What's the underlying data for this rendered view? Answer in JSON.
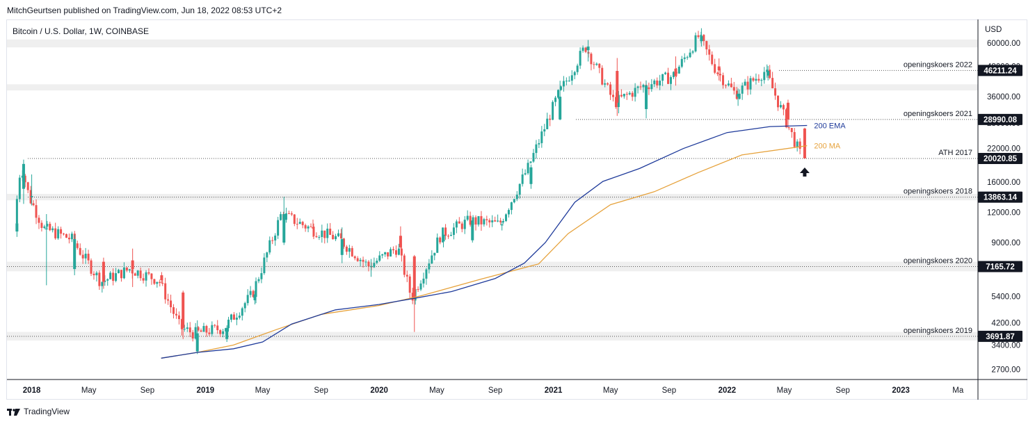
{
  "header": {
    "published": "MitchGeurtsen published on TradingView.com, Jun 18, 2022 08:53 UTC+2"
  },
  "symbol": {
    "label": "Bitcoin / U.S. Dollar, 1W, COINBASE"
  },
  "footer": {
    "brand": "TradingView"
  },
  "colors": {
    "up": "#26a69a",
    "down": "#ef5350",
    "ema": "#1e3a9a",
    "ma": "#e6a23c",
    "zone": "#efefef",
    "grid": "#555555"
  },
  "chart_data": {
    "type": "candlestick",
    "y_scale": "log",
    "ylim": [
      2450,
      75000
    ],
    "y_unit": "USD",
    "y_ticks": [
      60000,
      48000,
      36000,
      28000,
      22000,
      16000,
      12000,
      9000,
      5400,
      4200,
      3400,
      2700
    ],
    "x_ticks": [
      {
        "label": "2018",
        "date": "2018-01",
        "bold": true
      },
      {
        "label": "May",
        "date": "2018-05"
      },
      {
        "label": "Sep",
        "date": "2018-09"
      },
      {
        "label": "2019",
        "date": "2019-01",
        "bold": true
      },
      {
        "label": "May",
        "date": "2019-05"
      },
      {
        "label": "Sep",
        "date": "2019-09"
      },
      {
        "label": "2020",
        "date": "2020-01",
        "bold": true
      },
      {
        "label": "May",
        "date": "2020-05"
      },
      {
        "label": "Sep",
        "date": "2020-09"
      },
      {
        "label": "2021",
        "date": "2021-01",
        "bold": true
      },
      {
        "label": "May",
        "date": "2021-05"
      },
      {
        "label": "Sep",
        "date": "2021-09"
      },
      {
        "label": "2022",
        "date": "2022-01",
        "bold": true
      },
      {
        "label": "May",
        "date": "2022-05"
      },
      {
        "label": "Sep",
        "date": "2022-09"
      },
      {
        "label": "2023",
        "date": "2023-01",
        "bold": true
      },
      {
        "label": "Ma",
        "date": "2023-05"
      }
    ],
    "price_levels": [
      {
        "label": "openingskoers 2022",
        "price": "46211.24",
        "value": 46211.24
      },
      {
        "label": "openingskoers 2021",
        "price": "28990.08",
        "value": 28990.08
      },
      {
        "label": "ATH 2017",
        "price": "20020.85",
        "value": 20020.85
      },
      {
        "label": "openingskoers 2018",
        "price": "13863.14",
        "value": 13863.14
      },
      {
        "label": "openingskoers 2020",
        "price": "7165.72",
        "value": 7165.72
      },
      {
        "label": "openingskoers 2019",
        "price": "3691.87",
        "value": 3691.87
      }
    ],
    "zones": [
      [
        57500,
        62000
      ],
      [
        38200,
        40500
      ],
      [
        6850,
        7500
      ],
      [
        3550,
        3850
      ],
      [
        13450,
        14300
      ]
    ],
    "ema_label": "200 EMA",
    "ma_label": "200 MA",
    "series_ema_200": [
      [
        "2018-09-30",
        3000
      ],
      [
        "2018-12-15",
        3170
      ],
      [
        "2019-03-01",
        3280
      ],
      [
        "2019-05-01",
        3500
      ],
      [
        "2019-07-01",
        4150
      ],
      [
        "2019-10-01",
        4750
      ],
      [
        "2020-01-01",
        5000
      ],
      [
        "2020-03-15",
        5300
      ],
      [
        "2020-06-01",
        5650
      ],
      [
        "2020-09-01",
        6400
      ],
      [
        "2020-11-01",
        7400
      ],
      [
        "2020-12-15",
        9000
      ],
      [
        "2021-02-15",
        13200
      ],
      [
        "2021-04-15",
        16100
      ],
      [
        "2021-07-01",
        18200
      ],
      [
        "2021-10-01",
        22000
      ],
      [
        "2022-01-01",
        25600
      ],
      [
        "2022-04-01",
        27100
      ],
      [
        "2022-06-18",
        27400
      ]
    ],
    "series_ma_200": [
      [
        "2018-09-30",
        3000
      ],
      [
        "2018-12-15",
        3170
      ],
      [
        "2019-03-01",
        3400
      ],
      [
        "2019-06-01",
        3950
      ],
      [
        "2019-09-01",
        4550
      ],
      [
        "2020-01-01",
        4950
      ],
      [
        "2020-04-01",
        5450
      ],
      [
        "2020-08-01",
        6350
      ],
      [
        "2020-12-01",
        7350
      ],
      [
        "2021-02-01",
        9800
      ],
      [
        "2021-05-01",
        12900
      ],
      [
        "2021-08-01",
        14600
      ],
      [
        "2021-11-01",
        17500
      ],
      [
        "2022-02-01",
        20700
      ],
      [
        "2022-06-18",
        22600
      ]
    ],
    "candles_ohlc": [
      {
        "date": "2017-12-01",
        "o": 10000,
        "h": 11500,
        "l": 9500,
        "c": 10800
      },
      {
        "date": "2017-12-15",
        "o": 15000,
        "h": 19800,
        "l": 13000,
        "c": 19000
      },
      {
        "date": "2018-01-01",
        "o": 13900,
        "h": 17200,
        "l": 12800,
        "c": 14000
      },
      {
        "date": "2018-02-01",
        "o": 10200,
        "h": 11800,
        "l": 6000,
        "c": 10300
      },
      {
        "date": "2018-04-01",
        "o": 7000,
        "h": 9700,
        "l": 6600,
        "c": 9300
      },
      {
        "date": "2018-06-01",
        "o": 7500,
        "h": 7800,
        "l": 5800,
        "c": 6200
      },
      {
        "date": "2018-08-01",
        "o": 7600,
        "h": 8500,
        "l": 5900,
        "c": 7000
      },
      {
        "date": "2018-10-01",
        "o": 6600,
        "h": 6800,
        "l": 6100,
        "c": 6300
      },
      {
        "date": "2018-11-15",
        "o": 5600,
        "h": 5700,
        "l": 3600,
        "c": 4000
      },
      {
        "date": "2018-12-15",
        "o": 3200,
        "h": 4300,
        "l": 3120,
        "c": 3800
      },
      {
        "date": "2019-02-15",
        "o": 3600,
        "h": 4100,
        "l": 3500,
        "c": 4000
      },
      {
        "date": "2019-04-15",
        "o": 5200,
        "h": 5700,
        "l": 5000,
        "c": 5500
      },
      {
        "date": "2019-06-15",
        "o": 9000,
        "h": 13900,
        "l": 8800,
        "c": 11800
      },
      {
        "date": "2019-08-15",
        "o": 10400,
        "h": 11200,
        "l": 9500,
        "c": 10300
      },
      {
        "date": "2019-10-15",
        "o": 8000,
        "h": 10400,
        "l": 7400,
        "c": 9300
      },
      {
        "date": "2019-12-15",
        "o": 7200,
        "h": 7700,
        "l": 6500,
        "c": 7200
      },
      {
        "date": "2020-02-15",
        "o": 9600,
        "h": 10500,
        "l": 8500,
        "c": 8600
      },
      {
        "date": "2020-03-15",
        "o": 7900,
        "h": 8000,
        "l": 3850,
        "c": 5300
      },
      {
        "date": "2020-05-15",
        "o": 9100,
        "h": 10100,
        "l": 8600,
        "c": 9700
      },
      {
        "date": "2020-07-15",
        "o": 9200,
        "h": 11400,
        "l": 9000,
        "c": 11100
      },
      {
        "date": "2020-09-15",
        "o": 10600,
        "h": 11000,
        "l": 10100,
        "c": 10700
      },
      {
        "date": "2020-11-15",
        "o": 15700,
        "h": 18900,
        "l": 15000,
        "c": 18400
      },
      {
        "date": "2021-01-15",
        "o": 29000,
        "h": 41900,
        "l": 28800,
        "c": 36000
      },
      {
        "date": "2021-03-15",
        "o": 56000,
        "h": 61700,
        "l": 50300,
        "c": 58000
      },
      {
        "date": "2021-05-15",
        "o": 46000,
        "h": 52000,
        "l": 30000,
        "c": 34000
      },
      {
        "date": "2021-07-15",
        "o": 32000,
        "h": 42000,
        "l": 29300,
        "c": 40000
      },
      {
        "date": "2021-09-15",
        "o": 47000,
        "h": 52800,
        "l": 40000,
        "c": 43800
      },
      {
        "date": "2021-11-08",
        "o": 61000,
        "h": 69000,
        "l": 58000,
        "c": 64000
      },
      {
        "date": "2021-12-15",
        "o": 48000,
        "h": 51800,
        "l": 42000,
        "c": 46200
      },
      {
        "date": "2022-01-24",
        "o": 36000,
        "h": 38900,
        "l": 33000,
        "c": 37000
      },
      {
        "date": "2022-03-28",
        "o": 44000,
        "h": 48200,
        "l": 42000,
        "c": 46000
      },
      {
        "date": "2022-05-09",
        "o": 34000,
        "h": 35000,
        "l": 26700,
        "c": 29000
      },
      {
        "date": "2022-06-13",
        "o": 26600,
        "h": 26800,
        "l": 20020,
        "c": 20020
      }
    ]
  }
}
